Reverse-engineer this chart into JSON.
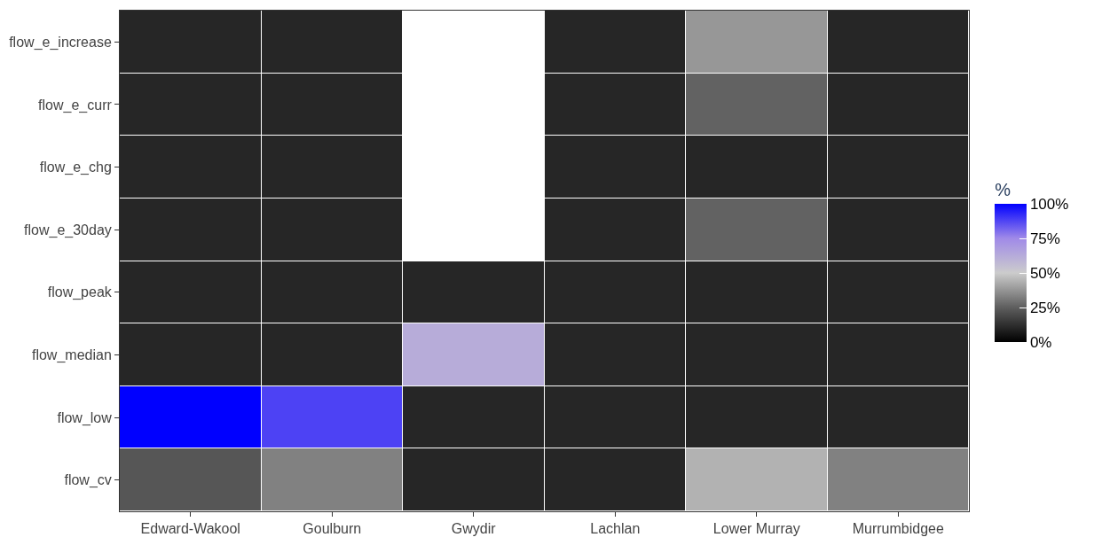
{
  "chart_data": {
    "type": "heatmap",
    "categories": [
      "Edward-Wakool",
      "Goulburn",
      "Gwydir",
      "Lachlan",
      "Lower Murray",
      "Murrumbidgee"
    ],
    "y_categories": [
      "flow_e_increase",
      "flow_e_curr",
      "flow_e_chg",
      "flow_e_30day",
      "flow_peak",
      "flow_median",
      "flow_low",
      "flow_cv"
    ],
    "cells": [
      [
        10,
        10,
        null,
        10,
        38,
        10
      ],
      [
        10,
        10,
        null,
        10,
        26,
        10
      ],
      [
        10,
        10,
        null,
        10,
        10,
        10
      ],
      [
        10,
        10,
        null,
        10,
        26,
        10
      ],
      [
        10,
        10,
        10,
        10,
        10,
        10
      ],
      [
        10,
        10,
        62,
        10,
        10,
        10
      ],
      [
        100,
        88,
        10,
        10,
        10,
        10
      ],
      [
        23,
        33,
        10,
        10,
        44,
        33
      ]
    ],
    "clabel": "%",
    "clim": [
      0,
      100
    ],
    "cticks": [
      {
        "value": 0,
        "label": "0%"
      },
      {
        "value": 25,
        "label": "25%"
      },
      {
        "value": 50,
        "label": "50%"
      },
      {
        "value": 75,
        "label": "75%"
      },
      {
        "value": 100,
        "label": "100%"
      }
    ],
    "colors": [
      "#000000",
      "#5e5e5e",
      "#cccccc",
      "#a08ae8",
      "#0000ff"
    ]
  }
}
